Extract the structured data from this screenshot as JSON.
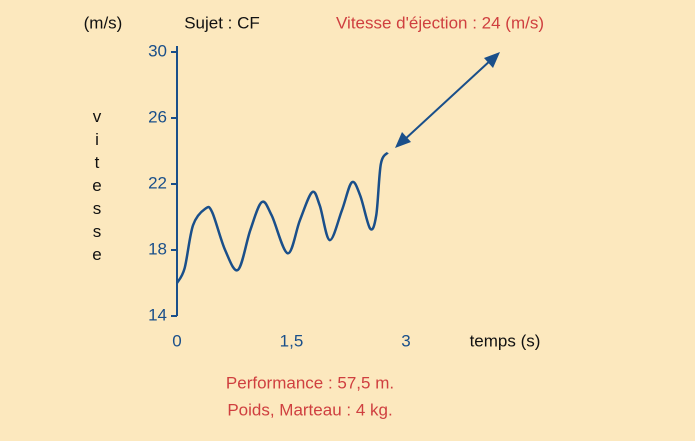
{
  "chart_data": {
    "type": "line",
    "y_unit": "(m/s)",
    "subject": "Sujet : CF",
    "annotation": "Vitesse d'éjection : 24 (m/s)",
    "y_label": "vitesse",
    "x_label": "temps (s)",
    "notes": [
      "Performance : 57,5 m.",
      "Poids, Marteau : 4 kg."
    ],
    "x": [
      0,
      0.1,
      0.21,
      0.37,
      0.46,
      0.63,
      0.8,
      0.96,
      1.11,
      1.24,
      1.45,
      1.61,
      1.77,
      1.87,
      2.0,
      2.16,
      2.29,
      2.4,
      2.53,
      2.61,
      2.67,
      2.76
    ],
    "series": [
      {
        "color": "#1a4f8a",
        "values": [
          16.0,
          16.9,
          19.5,
          20.5,
          20.3,
          18.0,
          16.8,
          19.2,
          20.9,
          20.1,
          17.8,
          19.8,
          21.5,
          20.7,
          18.6,
          20.4,
          22.1,
          21.3,
          19.3,
          20.1,
          23.2,
          23.9
        ]
      }
    ],
    "xlim": [
      0,
      3
    ],
    "xticks": [
      0,
      {
        "value": 1.5,
        "label": "1,5"
      },
      3
    ],
    "ylim": [
      14,
      30
    ],
    "yticks": [
      14,
      18,
      22,
      26,
      30
    ]
  }
}
